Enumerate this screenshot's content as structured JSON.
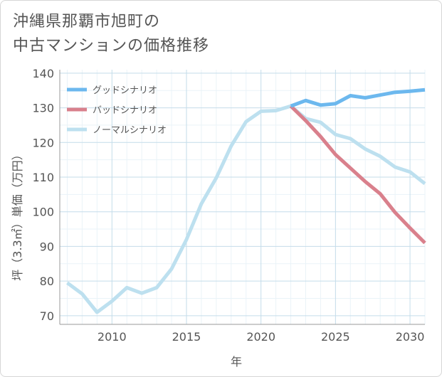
{
  "chart_data": {
    "type": "line",
    "title": [
      "沖縄県那覇市旭町の",
      "中古マンションの価格推移"
    ],
    "xlabel": "年",
    "ylabel": "坪（3.3㎡）単価（万円）",
    "xlim": [
      2006.5,
      2031
    ],
    "ylim": [
      67.5,
      141
    ],
    "x_ticks": [
      2010,
      2015,
      2020,
      2025,
      2030
    ],
    "y_ticks": [
      70,
      80,
      90,
      100,
      110,
      120,
      130,
      140
    ],
    "grid": true,
    "legend_position": "top-left",
    "series": [
      {
        "name": "グッドシナリオ",
        "color": "#6cb8ee",
        "x": [
          2022,
          2023,
          2024,
          2025,
          2026,
          2027,
          2028,
          2029,
          2030,
          2031
        ],
        "y": [
          130.5,
          132.1,
          130.8,
          131.2,
          133.5,
          132.9,
          133.7,
          134.5,
          134.8,
          135.2
        ]
      },
      {
        "name": "バッドシナリオ",
        "color": "#d9808c",
        "x": [
          2022,
          2023,
          2024,
          2025,
          2026,
          2027,
          2028,
          2029,
          2030,
          2031
        ],
        "y": [
          130.5,
          126.3,
          121.7,
          116.5,
          112.6,
          108.7,
          105.2,
          99.8,
          95.3,
          91.0
        ]
      },
      {
        "name": "ノーマルシナリオ",
        "color": "#bde0ef",
        "x": [
          2007,
          2008,
          2009,
          2010,
          2011,
          2012,
          2013,
          2014,
          2015,
          2016,
          2017,
          2018,
          2019,
          2020,
          2021,
          2022,
          2023,
          2024,
          2025,
          2026,
          2027,
          2028,
          2029,
          2030,
          2031
        ],
        "y": [
          79.5,
          76.3,
          71.0,
          74.2,
          78.1,
          76.5,
          78.1,
          83.5,
          92.0,
          102.3,
          109.8,
          119.0,
          126.0,
          129.0,
          129.2,
          130.5,
          126.9,
          125.8,
          122.3,
          121.1,
          118.1,
          116.0,
          112.9,
          111.5,
          108.1
        ]
      }
    ]
  }
}
